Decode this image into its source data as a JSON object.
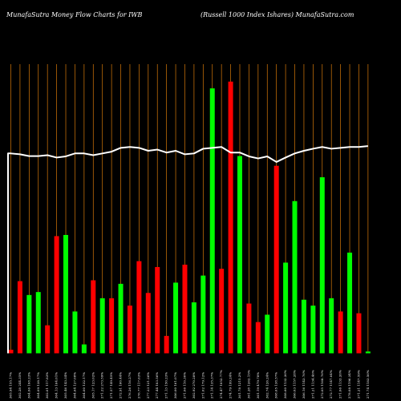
{
  "chart_data": {
    "type": "bar",
    "title_left": "MunafaSutra  Money Flow  Charts for IWB",
    "title_right": "(Russell 1000   Index Ishares) MunafaSutra.com",
    "colors": {
      "up": "#00ff00",
      "down": "#ff0000",
      "grid": "#d87a0a",
      "line": "#ffffff",
      "background": "#000000"
    },
    "ylim": [
      0,
      100
    ],
    "categories": [
      "305.94 155.17%",
      "302.28 244.35%",
      "304.06 108.23%",
      "304.09 138.17%",
      "302.01 117.83%",
      "304.13 164.01%",
      "305.46 143.34%",
      "304.64 127.08%",
      "304.00 132.17%",
      "305.17 123.02%",
      "271.22 273.59%",
      "271.57 149.45%",
      "272.91 160.44%",
      "276.26 116.27%",
      "276.77 117.63%",
      "277.23 121.26%",
      "277.44 103.56%",
      "271.13 150.23%",
      "306.00 161.07%",
      "271.06 110.30%",
      "302.92 270.28%",
      "271.02 179.12%",
      "271.14 135.37%",
      "274.47 1052.77%",
      "274.79 199.24%",
      "301.78 1215.2%",
      "301.28 1262.15%",
      "301.19 479.78%",
      "302.74 126.24%",
      "308.65 138.57%",
      "308.60 1132.36%",
      "306.03 1157.28%",
      "306.16 1143.76%",
      "271.21 1134.46%",
      "272.05 1168.76%",
      "272.77 1147.04%",
      "271.06 1133.26%",
      "278.08 1196.34%",
      "271.21 1147.59%",
      "271.74 1183.56%"
    ],
    "bars": [
      {
        "value": 1.2,
        "color": "down"
      },
      {
        "value": 24.5,
        "color": "down"
      },
      {
        "value": 19.8,
        "color": "up"
      },
      {
        "value": 20.8,
        "color": "up"
      },
      {
        "value": 9.5,
        "color": "down"
      },
      {
        "value": 39.8,
        "color": "down"
      },
      {
        "value": 40.2,
        "color": "up"
      },
      {
        "value": 14.2,
        "color": "up"
      },
      {
        "value": 3.0,
        "color": "up"
      },
      {
        "value": 24.8,
        "color": "down"
      },
      {
        "value": 18.7,
        "color": "up"
      },
      {
        "value": 18.7,
        "color": "down"
      },
      {
        "value": 23.6,
        "color": "up"
      },
      {
        "value": 16.2,
        "color": "down"
      },
      {
        "value": 31.3,
        "color": "down"
      },
      {
        "value": 20.5,
        "color": "down"
      },
      {
        "value": 29.3,
        "color": "down"
      },
      {
        "value": 5.9,
        "color": "down"
      },
      {
        "value": 24.0,
        "color": "up"
      },
      {
        "value": 30.1,
        "color": "down"
      },
      {
        "value": 17.3,
        "color": "up"
      },
      {
        "value": 26.4,
        "color": "up"
      },
      {
        "value": 90.0,
        "color": "up"
      },
      {
        "value": 28.7,
        "color": "down"
      },
      {
        "value": 92.3,
        "color": "down"
      },
      {
        "value": 67.0,
        "color": "up"
      },
      {
        "value": 16.9,
        "color": "down"
      },
      {
        "value": 10.6,
        "color": "down"
      },
      {
        "value": 13.1,
        "color": "up"
      },
      {
        "value": 63.7,
        "color": "down"
      },
      {
        "value": 30.8,
        "color": "up"
      },
      {
        "value": 51.7,
        "color": "up"
      },
      {
        "value": 18.2,
        "color": "up"
      },
      {
        "value": 16.2,
        "color": "up"
      },
      {
        "value": 59.8,
        "color": "up"
      },
      {
        "value": 18.7,
        "color": "up"
      },
      {
        "value": 14.2,
        "color": "down"
      },
      {
        "value": 34.2,
        "color": "up"
      },
      {
        "value": 13.6,
        "color": "down"
      },
      {
        "value": 0.6,
        "color": "up"
      }
    ],
    "line_values": [
      67.9,
      67.6,
      67.0,
      67.0,
      67.3,
      66.5,
      66.9,
      67.9,
      67.9,
      67.3,
      67.9,
      68.5,
      69.8,
      70.1,
      69.8,
      68.8,
      69.2,
      68.2,
      68.8,
      67.6,
      67.9,
      69.5,
      69.8,
      70.1,
      68.2,
      68.2,
      66.9,
      66.2,
      66.9,
      65.0,
      66.5,
      67.9,
      68.8,
      69.5,
      70.1,
      69.5,
      69.8,
      70.1,
      70.1,
      70.4
    ],
    "line_start": 67.9,
    "grid": true,
    "grid_orientation": "vertical"
  }
}
